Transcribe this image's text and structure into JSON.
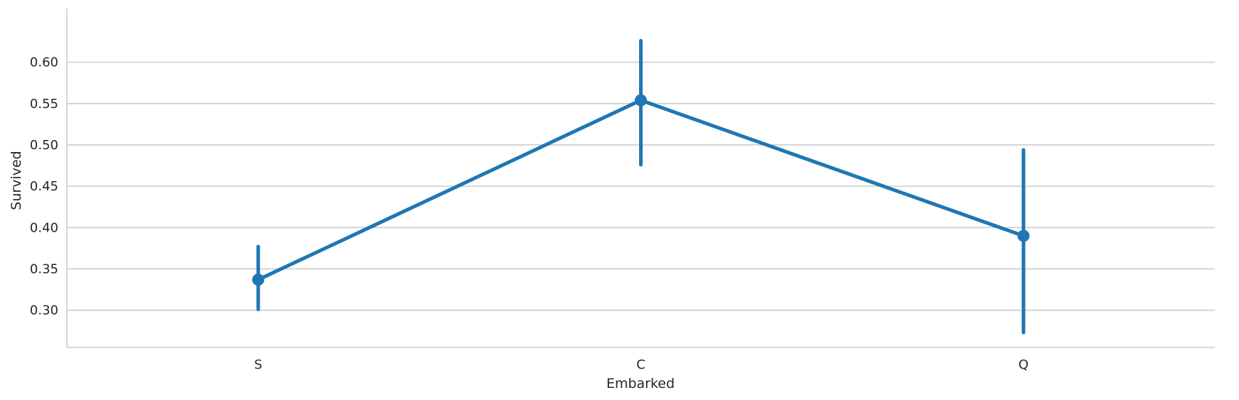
{
  "chart_data": {
    "type": "line",
    "title": "",
    "xlabel": "Embarked",
    "ylabel": "Survived",
    "categories": [
      "S",
      "C",
      "Q"
    ],
    "values": [
      0.337,
      0.554,
      0.39
    ],
    "ci_low": [
      0.301,
      0.476,
      0.273
    ],
    "ci_high": [
      0.377,
      0.626,
      0.494
    ],
    "yticks": [
      "0.30",
      "0.35",
      "0.40",
      "0.45",
      "0.50",
      "0.55",
      "0.60"
    ],
    "ylim": [
      0.255,
      0.665
    ],
    "grid": "horizontal",
    "color": "#1f77b4"
  }
}
